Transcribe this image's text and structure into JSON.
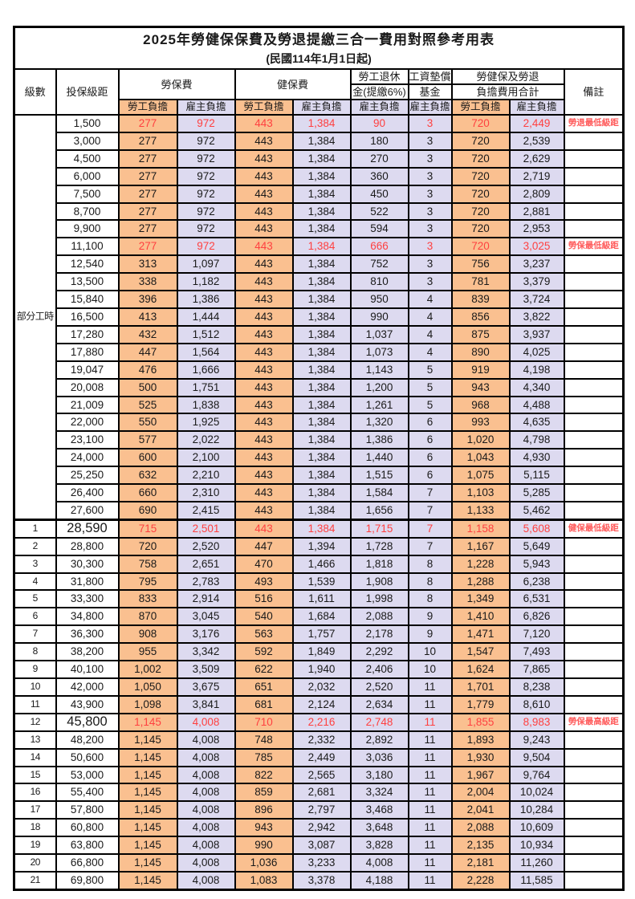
{
  "title": "2025年勞健保保費及勞退提繳三合一費用對照參考用表",
  "subtitle": "(民國114年1月1日起)",
  "header": {
    "level": "級數",
    "bracket": "投保級距",
    "labor": "勞保費",
    "health": "健保費",
    "pension_line1": "勞工退休",
    "pension_line2": "金(提繳6%)",
    "wage_line1": "工資墊償",
    "wage_line2": "基金",
    "total_line1": "勞健保及勞退",
    "total_line2": "負擔費用合計",
    "remark": "備註",
    "employee_label": "勞工負擔",
    "employer_label": "雇主負擔"
  },
  "part_time_label": "部分工時",
  "part_time_rowspan": 23,
  "colors": {
    "employee_bg": "#FAC090",
    "employer_bg": "#DDDAF0",
    "highlight_red": "#FF4040",
    "note_red": "#FF5A5A"
  },
  "rows": [
    {
      "level": "",
      "bracket": "1,500",
      "values": [
        "277",
        "972",
        "443",
        "1,384",
        "90",
        "3",
        "720",
        "2,449"
      ],
      "red": true,
      "big": false,
      "thick_top": false,
      "note": "勞退最低級距"
    },
    {
      "level": "",
      "bracket": "3,000",
      "values": [
        "277",
        "972",
        "443",
        "1,384",
        "180",
        "3",
        "720",
        "2,539"
      ],
      "red": false,
      "big": false,
      "thick_top": false,
      "note": ""
    },
    {
      "level": "",
      "bracket": "4,500",
      "values": [
        "277",
        "972",
        "443",
        "1,384",
        "270",
        "3",
        "720",
        "2,629"
      ],
      "red": false,
      "big": false,
      "thick_top": false,
      "note": ""
    },
    {
      "level": "",
      "bracket": "6,000",
      "values": [
        "277",
        "972",
        "443",
        "1,384",
        "360",
        "3",
        "720",
        "2,719"
      ],
      "red": false,
      "big": false,
      "thick_top": false,
      "note": ""
    },
    {
      "level": "",
      "bracket": "7,500",
      "values": [
        "277",
        "972",
        "443",
        "1,384",
        "450",
        "3",
        "720",
        "2,809"
      ],
      "red": false,
      "big": false,
      "thick_top": false,
      "note": ""
    },
    {
      "level": "",
      "bracket": "8,700",
      "values": [
        "277",
        "972",
        "443",
        "1,384",
        "522",
        "3",
        "720",
        "2,881"
      ],
      "red": false,
      "big": false,
      "thick_top": false,
      "note": ""
    },
    {
      "level": "",
      "bracket": "9,900",
      "values": [
        "277",
        "972",
        "443",
        "1,384",
        "594",
        "3",
        "720",
        "2,953"
      ],
      "red": false,
      "big": false,
      "thick_top": false,
      "note": ""
    },
    {
      "level": "",
      "bracket": "11,100",
      "values": [
        "277",
        "972",
        "443",
        "1,384",
        "666",
        "3",
        "720",
        "3,025"
      ],
      "red": true,
      "big": false,
      "thick_top": false,
      "note": "勞保最低級距"
    },
    {
      "level": "",
      "bracket": "12,540",
      "values": [
        "313",
        "1,097",
        "443",
        "1,384",
        "752",
        "3",
        "756",
        "3,237"
      ],
      "red": false,
      "big": false,
      "thick_top": false,
      "note": ""
    },
    {
      "level": "",
      "bracket": "13,500",
      "values": [
        "338",
        "1,182",
        "443",
        "1,384",
        "810",
        "3",
        "781",
        "3,379"
      ],
      "red": false,
      "big": false,
      "thick_top": false,
      "note": ""
    },
    {
      "level": "",
      "bracket": "15,840",
      "values": [
        "396",
        "1,386",
        "443",
        "1,384",
        "950",
        "4",
        "839",
        "3,724"
      ],
      "red": false,
      "big": false,
      "thick_top": false,
      "note": ""
    },
    {
      "level": "",
      "bracket": "16,500",
      "values": [
        "413",
        "1,444",
        "443",
        "1,384",
        "990",
        "4",
        "856",
        "3,822"
      ],
      "red": false,
      "big": false,
      "thick_top": false,
      "note": ""
    },
    {
      "level": "",
      "bracket": "17,280",
      "values": [
        "432",
        "1,512",
        "443",
        "1,384",
        "1,037",
        "4",
        "875",
        "3,937"
      ],
      "red": false,
      "big": false,
      "thick_top": false,
      "note": ""
    },
    {
      "level": "",
      "bracket": "17,880",
      "values": [
        "447",
        "1,564",
        "443",
        "1,384",
        "1,073",
        "4",
        "890",
        "4,025"
      ],
      "red": false,
      "big": false,
      "thick_top": false,
      "note": ""
    },
    {
      "level": "",
      "bracket": "19,047",
      "values": [
        "476",
        "1,666",
        "443",
        "1,384",
        "1,143",
        "5",
        "919",
        "4,198"
      ],
      "red": false,
      "big": false,
      "thick_top": false,
      "note": ""
    },
    {
      "level": "",
      "bracket": "20,008",
      "values": [
        "500",
        "1,751",
        "443",
        "1,384",
        "1,200",
        "5",
        "943",
        "4,340"
      ],
      "red": false,
      "big": false,
      "thick_top": false,
      "note": ""
    },
    {
      "level": "",
      "bracket": "21,009",
      "values": [
        "525",
        "1,838",
        "443",
        "1,384",
        "1,261",
        "5",
        "968",
        "4,488"
      ],
      "red": false,
      "big": false,
      "thick_top": false,
      "note": ""
    },
    {
      "level": "",
      "bracket": "22,000",
      "values": [
        "550",
        "1,925",
        "443",
        "1,384",
        "1,320",
        "6",
        "993",
        "4,635"
      ],
      "red": false,
      "big": false,
      "thick_top": false,
      "note": ""
    },
    {
      "level": "",
      "bracket": "23,100",
      "values": [
        "577",
        "2,022",
        "443",
        "1,384",
        "1,386",
        "6",
        "1,020",
        "4,798"
      ],
      "red": false,
      "big": false,
      "thick_top": false,
      "note": ""
    },
    {
      "level": "",
      "bracket": "24,000",
      "values": [
        "600",
        "2,100",
        "443",
        "1,384",
        "1,440",
        "6",
        "1,043",
        "4,930"
      ],
      "red": false,
      "big": false,
      "thick_top": false,
      "note": ""
    },
    {
      "level": "",
      "bracket": "25,250",
      "values": [
        "632",
        "2,210",
        "443",
        "1,384",
        "1,515",
        "6",
        "1,075",
        "5,115"
      ],
      "red": false,
      "big": false,
      "thick_top": false,
      "note": ""
    },
    {
      "level": "",
      "bracket": "26,400",
      "values": [
        "660",
        "2,310",
        "443",
        "1,384",
        "1,584",
        "7",
        "1,103",
        "5,285"
      ],
      "red": false,
      "big": false,
      "thick_top": false,
      "note": ""
    },
    {
      "level": "",
      "bracket": "27,600",
      "values": [
        "690",
        "2,415",
        "443",
        "1,384",
        "1,656",
        "7",
        "1,133",
        "5,462"
      ],
      "red": false,
      "big": false,
      "thick_top": false,
      "note": ""
    },
    {
      "level": "1",
      "bracket": "28,590",
      "values": [
        "715",
        "2,501",
        "443",
        "1,384",
        "1,715",
        "7",
        "1,158",
        "5,608"
      ],
      "red": true,
      "big": true,
      "thick_top": true,
      "note": "健保最低級距"
    },
    {
      "level": "2",
      "bracket": "28,800",
      "values": [
        "720",
        "2,520",
        "447",
        "1,394",
        "1,728",
        "7",
        "1,167",
        "5,649"
      ],
      "red": false,
      "big": false,
      "thick_top": false,
      "note": ""
    },
    {
      "level": "3",
      "bracket": "30,300",
      "values": [
        "758",
        "2,651",
        "470",
        "1,466",
        "1,818",
        "8",
        "1,228",
        "5,943"
      ],
      "red": false,
      "big": false,
      "thick_top": false,
      "note": ""
    },
    {
      "level": "4",
      "bracket": "31,800",
      "values": [
        "795",
        "2,783",
        "493",
        "1,539",
        "1,908",
        "8",
        "1,288",
        "6,238"
      ],
      "red": false,
      "big": false,
      "thick_top": false,
      "note": ""
    },
    {
      "level": "5",
      "bracket": "33,300",
      "values": [
        "833",
        "2,914",
        "516",
        "1,611",
        "1,998",
        "8",
        "1,349",
        "6,531"
      ],
      "red": false,
      "big": false,
      "thick_top": false,
      "note": ""
    },
    {
      "level": "6",
      "bracket": "34,800",
      "values": [
        "870",
        "3,045",
        "540",
        "1,684",
        "2,088",
        "9",
        "1,410",
        "6,826"
      ],
      "red": false,
      "big": false,
      "thick_top": false,
      "note": ""
    },
    {
      "level": "7",
      "bracket": "36,300",
      "values": [
        "908",
        "3,176",
        "563",
        "1,757",
        "2,178",
        "9",
        "1,471",
        "7,120"
      ],
      "red": false,
      "big": false,
      "thick_top": false,
      "note": ""
    },
    {
      "level": "8",
      "bracket": "38,200",
      "values": [
        "955",
        "3,342",
        "592",
        "1,849",
        "2,292",
        "10",
        "1,547",
        "7,493"
      ],
      "red": false,
      "big": false,
      "thick_top": false,
      "note": ""
    },
    {
      "level": "9",
      "bracket": "40,100",
      "values": [
        "1,002",
        "3,509",
        "622",
        "1,940",
        "2,406",
        "10",
        "1,624",
        "7,865"
      ],
      "red": false,
      "big": false,
      "thick_top": false,
      "note": ""
    },
    {
      "level": "10",
      "bracket": "42,000",
      "values": [
        "1,050",
        "3,675",
        "651",
        "2,032",
        "2,520",
        "11",
        "1,701",
        "8,238"
      ],
      "red": false,
      "big": false,
      "thick_top": false,
      "note": ""
    },
    {
      "level": "11",
      "bracket": "43,900",
      "values": [
        "1,098",
        "3,841",
        "681",
        "2,124",
        "2,634",
        "11",
        "1,779",
        "8,610"
      ],
      "red": false,
      "big": false,
      "thick_top": false,
      "note": ""
    },
    {
      "level": "12",
      "bracket": "45,800",
      "values": [
        "1,145",
        "4,008",
        "710",
        "2,216",
        "2,748",
        "11",
        "1,855",
        "8,983"
      ],
      "red": true,
      "big": true,
      "thick_top": false,
      "note": "勞保最高級距"
    },
    {
      "level": "13",
      "bracket": "48,200",
      "values": [
        "1,145",
        "4,008",
        "748",
        "2,332",
        "2,892",
        "11",
        "1,893",
        "9,243"
      ],
      "red": false,
      "big": false,
      "thick_top": false,
      "note": ""
    },
    {
      "level": "14",
      "bracket": "50,600",
      "values": [
        "1,145",
        "4,008",
        "785",
        "2,449",
        "3,036",
        "11",
        "1,930",
        "9,504"
      ],
      "red": false,
      "big": false,
      "thick_top": false,
      "note": ""
    },
    {
      "level": "15",
      "bracket": "53,000",
      "values": [
        "1,145",
        "4,008",
        "822",
        "2,565",
        "3,180",
        "11",
        "1,967",
        "9,764"
      ],
      "red": false,
      "big": false,
      "thick_top": false,
      "note": ""
    },
    {
      "level": "16",
      "bracket": "55,400",
      "values": [
        "1,145",
        "4,008",
        "859",
        "2,681",
        "3,324",
        "11",
        "2,004",
        "10,024"
      ],
      "red": false,
      "big": false,
      "thick_top": false,
      "note": ""
    },
    {
      "level": "17",
      "bracket": "57,800",
      "values": [
        "1,145",
        "4,008",
        "896",
        "2,797",
        "3,468",
        "11",
        "2,041",
        "10,284"
      ],
      "red": false,
      "big": false,
      "thick_top": false,
      "note": ""
    },
    {
      "level": "18",
      "bracket": "60,800",
      "values": [
        "1,145",
        "4,008",
        "943",
        "2,942",
        "3,648",
        "11",
        "2,088",
        "10,609"
      ],
      "red": false,
      "big": false,
      "thick_top": false,
      "note": ""
    },
    {
      "level": "19",
      "bracket": "63,800",
      "values": [
        "1,145",
        "4,008",
        "990",
        "3,087",
        "3,828",
        "11",
        "2,135",
        "10,934"
      ],
      "red": false,
      "big": false,
      "thick_top": false,
      "note": ""
    },
    {
      "level": "20",
      "bracket": "66,800",
      "values": [
        "1,145",
        "4,008",
        "1,036",
        "3,233",
        "4,008",
        "11",
        "2,181",
        "11,260"
      ],
      "red": false,
      "big": false,
      "thick_top": false,
      "note": ""
    },
    {
      "level": "21",
      "bracket": "69,800",
      "values": [
        "1,145",
        "4,008",
        "1,083",
        "3,378",
        "4,188",
        "11",
        "2,228",
        "11,585"
      ],
      "red": false,
      "big": false,
      "thick_top": false,
      "note": ""
    }
  ]
}
